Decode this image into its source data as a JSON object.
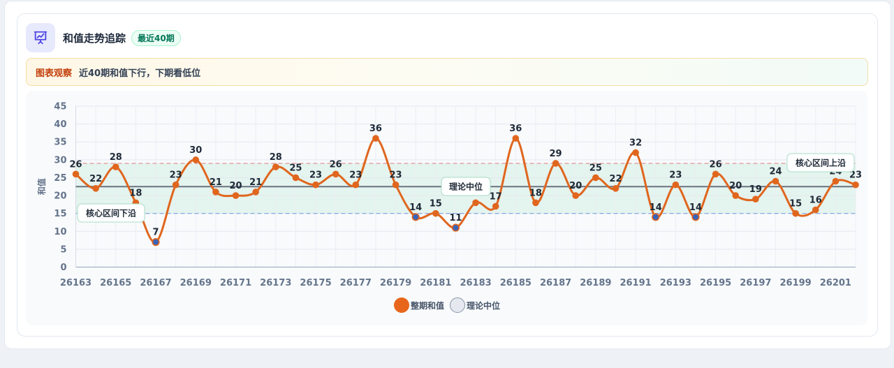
{
  "header": {
    "title": "和值走势追踪",
    "badge": "最近40期",
    "icon": "chart-presentation-icon"
  },
  "insight": {
    "tag": "图表观察",
    "text": "近40期和值下行，下期看低位"
  },
  "legend": {
    "series_label": "整期和值",
    "median_label": "理论中位"
  },
  "colors": {
    "line": "#e0661e",
    "marker_low": "#3b64b8",
    "upper_line": "#e08a8a",
    "lower_line": "#7d9fe0",
    "median_line": "#6b7280",
    "band": "#dff3ea"
  },
  "chart_data": {
    "type": "line",
    "title": "",
    "xlabel": "",
    "ylabel": "和值",
    "ylim": [
      0,
      45
    ],
    "yticks": [
      0,
      5,
      10,
      15,
      20,
      25,
      30,
      35,
      40,
      45
    ],
    "grid": true,
    "x": [
      26163,
      26164,
      26165,
      26166,
      26167,
      26168,
      26169,
      26170,
      26171,
      26172,
      26173,
      26174,
      26175,
      26176,
      26177,
      26178,
      26179,
      26180,
      26181,
      26182,
      26183,
      26184,
      26185,
      26186,
      26187,
      26188,
      26189,
      26190,
      26191,
      26192,
      26193,
      26194,
      26195,
      26196,
      26197,
      26198,
      26199,
      26200,
      26201,
      26202
    ],
    "xtick_labels": [
      "26163",
      "26165",
      "26167",
      "26169",
      "26171",
      "26173",
      "26175",
      "26177",
      "26179",
      "26181",
      "26183",
      "26185",
      "26187",
      "26189",
      "26191",
      "26193",
      "26195",
      "26197",
      "26199",
      "26201"
    ],
    "series": [
      {
        "name": "整期和值",
        "values": [
          26,
          22,
          28,
          18,
          7,
          23,
          30,
          21,
          20,
          21,
          28,
          25,
          23,
          26,
          23,
          36,
          23,
          14,
          15,
          11,
          18,
          17,
          36,
          18,
          29,
          20,
          25,
          22,
          32,
          14,
          23,
          14,
          26,
          20,
          19,
          24,
          15,
          16,
          24,
          23
        ]
      }
    ],
    "reference_lines": [
      {
        "value": 29,
        "label": "核心区间上沿"
      },
      {
        "value": 22.5,
        "label": "理论中位"
      },
      {
        "value": 15,
        "label": "核心区间下沿"
      }
    ],
    "band": [
      15,
      29
    ]
  }
}
